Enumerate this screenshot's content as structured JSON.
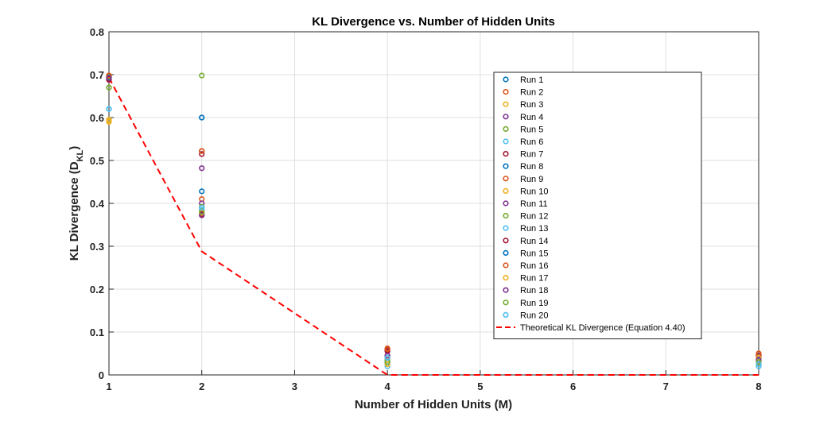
{
  "chart_data": {
    "type": "scatter",
    "title": "KL Divergence vs. Number of Hidden Units",
    "xlabel": "Number of Hidden Units (M)",
    "ylabel": {
      "main": "KL Divergence (D",
      "sub": "KL",
      "close": ")"
    },
    "xlim": [
      1,
      8
    ],
    "ylim": [
      0,
      0.8
    ],
    "xticks": [
      1,
      2,
      3,
      4,
      5,
      6,
      7,
      8
    ],
    "yticks": [
      0,
      0.1,
      0.2,
      0.3,
      0.4,
      0.5,
      0.6,
      0.7,
      0.8
    ],
    "grid": true,
    "legend_position": "right",
    "x": [
      1,
      2,
      4,
      8
    ],
    "series": [
      {
        "name": "Run 1",
        "color": "#0072BD",
        "values": [
          0.692,
          0.6,
          0.025,
          0.03
        ]
      },
      {
        "name": "Run 2",
        "color": "#D95319",
        "values": [
          0.698,
          0.41,
          0.06,
          0.045
        ]
      },
      {
        "name": "Run 3",
        "color": "#EDB120",
        "values": [
          0.59,
          0.385,
          0.035,
          0.035
        ]
      },
      {
        "name": "Run 4",
        "color": "#7E2F8E",
        "values": [
          0.69,
          0.482,
          0.04,
          0.04
        ]
      },
      {
        "name": "Run 5",
        "color": "#77AC30",
        "values": [
          0.67,
          0.698,
          0.03,
          0.025
        ]
      },
      {
        "name": "Run 6",
        "color": "#4DBEEE",
        "values": [
          0.62,
          0.39,
          0.02,
          0.02
        ]
      },
      {
        "name": "Run 7",
        "color": "#A2142F",
        "values": [
          0.688,
          0.515,
          0.055,
          0.04
        ]
      },
      {
        "name": "Run 8",
        "color": "#0072BD",
        "values": [
          0.693,
          0.428,
          0.03,
          0.035
        ]
      },
      {
        "name": "Run 9",
        "color": "#D95319",
        "values": [
          0.697,
          0.522,
          0.062,
          0.05
        ]
      },
      {
        "name": "Run 10",
        "color": "#EDB120",
        "values": [
          0.595,
          0.38,
          0.025,
          0.03
        ]
      },
      {
        "name": "Run 11",
        "color": "#7E2F8E",
        "values": [
          0.694,
          0.4,
          0.045,
          0.04
        ]
      },
      {
        "name": "Run 12",
        "color": "#77AC30",
        "values": [
          0.696,
          0.392,
          0.035,
          0.03
        ]
      },
      {
        "name": "Run 13",
        "color": "#4DBEEE",
        "values": [
          0.62,
          0.385,
          0.04,
          0.025
        ]
      },
      {
        "name": "Run 14",
        "color": "#A2142F",
        "values": [
          0.69,
          0.375,
          0.058,
          0.045
        ]
      },
      {
        "name": "Run 15",
        "color": "#0072BD",
        "values": [
          0.693,
          0.6,
          0.03,
          0.035
        ]
      },
      {
        "name": "Run 16",
        "color": "#D95319",
        "values": [
          0.698,
          0.522,
          0.06,
          0.05
        ]
      },
      {
        "name": "Run 17",
        "color": "#EDB120",
        "values": [
          0.592,
          0.378,
          0.025,
          0.04
        ]
      },
      {
        "name": "Run 18",
        "color": "#7E2F8E",
        "values": [
          0.692,
          0.372,
          0.045,
          0.035
        ]
      },
      {
        "name": "Run 19",
        "color": "#77AC30",
        "values": [
          0.67,
          0.38,
          0.03,
          0.03
        ]
      },
      {
        "name": "Run 20",
        "color": "#4DBEEE",
        "values": [
          0.62,
          0.39,
          0.04,
          0.025
        ]
      }
    ],
    "theory": {
      "name": "Theoretical KL Divergence (Equation 4.40)",
      "color": "#ff0000",
      "x": [
        1,
        2,
        4,
        8
      ],
      "values": [
        0.693,
        0.288,
        0,
        0
      ]
    }
  }
}
